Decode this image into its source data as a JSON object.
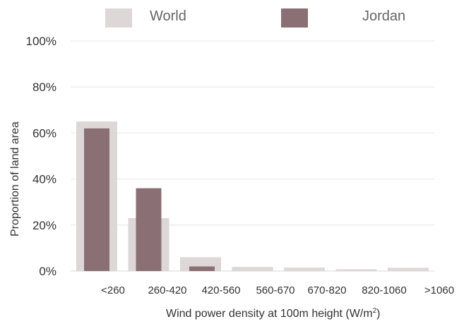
{
  "chart_data": {
    "type": "bar",
    "categories": [
      "<260",
      "260-420",
      "420-560",
      "560-670",
      "670-820",
      "820-1060",
      ">1060"
    ],
    "series": [
      {
        "name": "World",
        "color": "#ddd7d7",
        "values": [
          65,
          23,
          6,
          1.8,
          1.5,
          0.8,
          1.4
        ]
      },
      {
        "name": "Jordan",
        "color": "#8a7074",
        "values": [
          62,
          36,
          2,
          0,
          0,
          0,
          0
        ]
      }
    ],
    "y_ticks": [
      "0%",
      "20%",
      "40%",
      "60%",
      "80%",
      "100%"
    ],
    "ylim": [
      0,
      100
    ],
    "xlabel": "Wind power density at 100m height (W/m",
    "xlabel_sup": "2",
    "xlabel_end": ")",
    "ylabel": "Proportion of land area",
    "legend_position": "top",
    "grid": true,
    "grid_color": "#eeeeee"
  }
}
